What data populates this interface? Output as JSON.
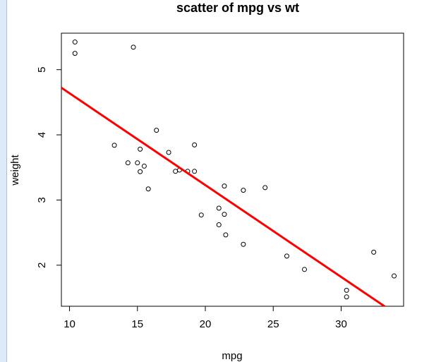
{
  "chart_data": {
    "type": "scatter",
    "title": "scatter of mpg vs wt",
    "xlabel": "mpg",
    "ylabel": "weight",
    "xlim": [
      9.4,
      34.6
    ],
    "ylim": [
      1.37,
      5.56
    ],
    "xticks": [
      10,
      15,
      20,
      25,
      30
    ],
    "yticks": [
      2,
      3,
      4,
      5
    ],
    "x_tick_labels": [
      "10",
      "15",
      "20",
      "25",
      "30"
    ],
    "y_tick_labels": [
      "2",
      "3",
      "4",
      "5"
    ],
    "points": [
      [
        21.0,
        2.62
      ],
      [
        21.0,
        2.875
      ],
      [
        22.8,
        2.32
      ],
      [
        21.4,
        3.215
      ],
      [
        18.7,
        3.44
      ],
      [
        18.1,
        3.46
      ],
      [
        14.3,
        3.57
      ],
      [
        24.4,
        3.19
      ],
      [
        22.8,
        3.15
      ],
      [
        19.2,
        3.44
      ],
      [
        17.8,
        3.44
      ],
      [
        16.4,
        4.07
      ],
      [
        17.3,
        3.73
      ],
      [
        15.2,
        3.78
      ],
      [
        10.4,
        5.25
      ],
      [
        10.4,
        5.424
      ],
      [
        14.7,
        5.345
      ],
      [
        32.4,
        2.2
      ],
      [
        30.4,
        1.615
      ],
      [
        33.9,
        1.835
      ],
      [
        21.5,
        2.465
      ],
      [
        15.5,
        3.52
      ],
      [
        15.2,
        3.435
      ],
      [
        13.3,
        3.84
      ],
      [
        19.2,
        3.845
      ],
      [
        27.3,
        1.935
      ],
      [
        26.0,
        2.14
      ],
      [
        30.4,
        1.513
      ],
      [
        15.8,
        3.17
      ],
      [
        19.7,
        2.77
      ],
      [
        15.0,
        3.57
      ],
      [
        21.4,
        2.78
      ]
    ],
    "regression_line": {
      "intercept": 6.047,
      "slope": -0.1409
    },
    "regression_color": "#ff0000",
    "point_color": "#000000"
  },
  "colors": {
    "sidebar_strip": "#dcebf7"
  }
}
